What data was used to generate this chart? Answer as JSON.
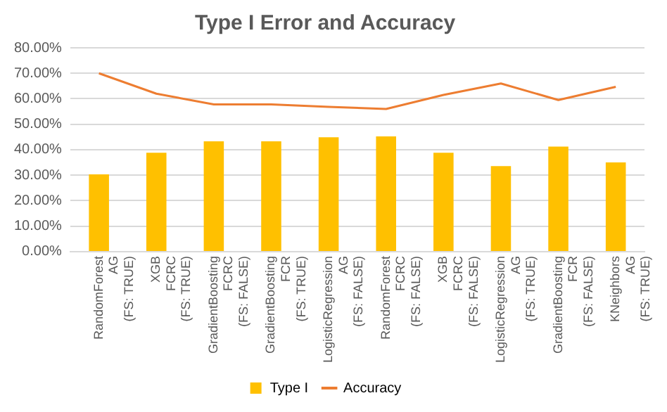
{
  "chart_data": {
    "type": "bar",
    "title": "Type I Error and Accuracy",
    "categories": [
      "RandomForest\nAG\n(FS: TRUE)",
      "XGB\nFCRC\n(FS: TRUE)",
      "GradientBoosting\nFCRC\n(FS: FALSE)",
      "GradientBoosting\nFCR\n(FS: TRUE)",
      "LogisticRegression\nAG\n(FS: FALSE)",
      "RandomForest\nFCRC\n(FS: FALSE)",
      "XGB\nFCRC\n(FS: FALSE)",
      "LogisticRegression\nAG\n(FS: TRUE)",
      "GradientBoosting\nFCR\n(FS: FALSE)",
      "KNeighbors\nAG\n(FS: TRUE)"
    ],
    "series": [
      {
        "name": "Type I",
        "color": "#ffc000",
        "values": [
          30.3,
          38.8,
          43.3,
          43.3,
          44.9,
          45.2,
          38.8,
          33.6,
          41.2,
          35.0
        ]
      },
      {
        "name": "Accuracy",
        "type": "line",
        "color": "#ed7d31",
        "values": [
          70.0,
          62.0,
          57.8,
          57.8,
          56.8,
          56.0,
          61.5,
          66.0,
          59.5,
          64.7
        ]
      }
    ],
    "ylim": [
      0,
      80
    ],
    "yticks": [
      {
        "value": 0,
        "label": "0.00%"
      },
      {
        "value": 10,
        "label": "10.00%"
      },
      {
        "value": 20,
        "label": "20.00%"
      },
      {
        "value": 30,
        "label": "30.00%"
      },
      {
        "value": 40,
        "label": "40.00%"
      },
      {
        "value": 50,
        "label": "50.00%"
      },
      {
        "value": 60,
        "label": "60.00%"
      },
      {
        "value": 70,
        "label": "70.00%"
      },
      {
        "value": 80,
        "label": "80.00%"
      }
    ],
    "grid": "y",
    "legend": "bottom",
    "marker": "none",
    "line_style": "solid"
  }
}
